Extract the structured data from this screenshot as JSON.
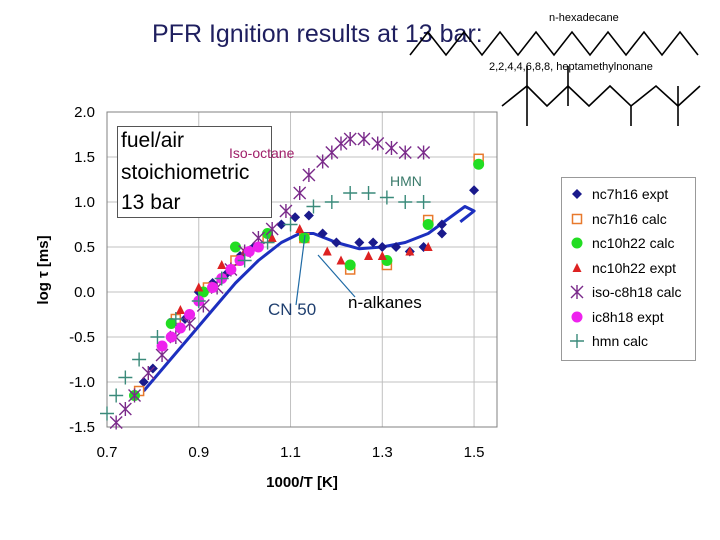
{
  "slide": {
    "title": "PFR Ignition results at 13 bar:",
    "molecule_top_label": "n-hexadecane",
    "molecule_bottom_label": "2,2,4,4,6,8,8, heptamethylnonane"
  },
  "info_box": {
    "line1": "fuel/air",
    "line2": "stoichiometric",
    "line3": "13 bar"
  },
  "annotations": {
    "iso_octane": "Iso-octane",
    "hmn": "HMN",
    "cn50": "CN 50",
    "n_alkanes": "n-alkanes"
  },
  "colors": {
    "nc7h16_expt": "#1a1a8c",
    "nc7h16_calc": "#e8792c",
    "nc10h22_calc": "#22dd22",
    "nc10h22_expt": "#dd2222",
    "iso_c8h18_calc": "#7a2a8a",
    "ic8h18_expt": "#ee22ee",
    "hmn_calc": "#3a8a7a",
    "curve": "#1c2fbf",
    "cn50_line": "#1f6aa5",
    "iso_label": "#a0206a",
    "hmn_label": "#3a7a6a",
    "title": "#1f1f5f"
  },
  "chart_data": {
    "type": "scatter",
    "xlabel": "1000/T [K]",
    "ylabel": "log τ [ms]",
    "xlim": [
      0.7,
      1.55
    ],
    "ylim": [
      -1.5,
      2.0
    ],
    "x_ticks": [
      "0.7",
      "0.9",
      "1.1",
      "1.3",
      "1.5"
    ],
    "y_ticks": [
      "2.0",
      "1.5",
      "1.0",
      "0.5",
      "0.0",
      "-0.5",
      "-1.0",
      "-1.5"
    ],
    "grid": true,
    "legend_position": "right",
    "series": [
      {
        "name": "nc7h16 expt",
        "marker": "diamond",
        "color_key": "nc7h16_expt",
        "x": [
          0.78,
          0.8,
          0.84,
          0.87,
          0.9,
          0.93,
          0.96,
          0.99,
          1.02,
          1.05,
          1.08,
          1.11,
          1.14,
          1.17,
          1.2,
          1.25,
          1.28,
          1.3,
          1.33,
          1.36,
          1.39,
          1.43,
          1.43,
          1.5
        ],
        "y": [
          -1.0,
          -0.85,
          -0.5,
          -0.3,
          0.0,
          0.1,
          0.2,
          0.4,
          0.5,
          0.65,
          0.75,
          0.83,
          0.85,
          0.65,
          0.55,
          0.55,
          0.55,
          0.5,
          0.5,
          0.45,
          0.5,
          0.65,
          0.75,
          1.13
        ]
      },
      {
        "name": "nc7h16  calc",
        "marker": "square",
        "color_key": "nc7h16_calc",
        "x": [
          0.77,
          0.85,
          0.92,
          0.98,
          1.05,
          1.13,
          1.23,
          1.31,
          1.4,
          1.51
        ],
        "y": [
          -1.1,
          -0.3,
          0.05,
          0.35,
          0.6,
          0.6,
          0.25,
          0.3,
          0.8,
          1.48
        ]
      },
      {
        "name": "nc10h22 calc",
        "marker": "circle",
        "color_key": "nc10h22_calc",
        "x": [
          0.76,
          0.84,
          0.91,
          0.98,
          1.05,
          1.13,
          1.23,
          1.31,
          1.4,
          1.51
        ],
        "y": [
          -1.15,
          -0.35,
          0.0,
          0.5,
          0.65,
          0.6,
          0.3,
          0.35,
          0.75,
          1.42
        ]
      },
      {
        "name": "nc10h22 expt",
        "marker": "triangle",
        "color_key": "nc10h22_expt",
        "x": [
          0.86,
          0.9,
          0.95,
          1.0,
          1.06,
          1.12,
          1.18,
          1.21,
          1.27,
          1.3,
          1.36,
          1.4
        ],
        "y": [
          -0.2,
          0.05,
          0.3,
          0.45,
          0.6,
          0.7,
          0.45,
          0.35,
          0.4,
          0.4,
          0.45,
          0.5
        ]
      },
      {
        "name": "iso-c8h18 calc",
        "marker": "star",
        "color_key": "iso_c8h18_calc",
        "x": [
          0.72,
          0.74,
          0.76,
          0.79,
          0.82,
          0.85,
          0.88,
          0.91,
          0.94,
          0.97,
          1.0,
          1.03,
          1.06,
          1.09,
          1.12,
          1.14,
          1.17,
          1.19,
          1.21,
          1.23,
          1.26,
          1.29,
          1.32,
          1.35,
          1.39
        ],
        "y": [
          -1.45,
          -1.3,
          -1.15,
          -0.9,
          -0.7,
          -0.5,
          -0.35,
          -0.15,
          0.05,
          0.25,
          0.45,
          0.6,
          0.7,
          0.9,
          1.1,
          1.3,
          1.45,
          1.55,
          1.65,
          1.7,
          1.7,
          1.65,
          1.6,
          1.55,
          1.55
        ]
      },
      {
        "name": "ic8h18 expt",
        "marker": "circle",
        "color_key": "ic8h18_expt",
        "x": [
          0.82,
          0.84,
          0.86,
          0.88,
          0.9,
          0.93,
          0.95,
          0.97,
          0.99,
          1.01,
          1.03
        ],
        "y": [
          -0.6,
          -0.5,
          -0.4,
          -0.25,
          -0.1,
          0.05,
          0.15,
          0.25,
          0.35,
          0.45,
          0.5
        ]
      },
      {
        "name": "hmn  calc",
        "marker": "plus",
        "color_key": "hmn_calc",
        "x": [
          0.7,
          0.72,
          0.74,
          0.77,
          0.81,
          0.85,
          0.9,
          0.95,
          1.0,
          1.05,
          1.1,
          1.15,
          1.19,
          1.23,
          1.27,
          1.31,
          1.35,
          1.39
        ],
        "y": [
          -1.35,
          -1.15,
          -0.95,
          -0.75,
          -0.5,
          -0.3,
          -0.1,
          0.15,
          0.35,
          0.55,
          0.75,
          0.95,
          1.0,
          1.1,
          1.1,
          1.05,
          1.0,
          1.0
        ]
      }
    ],
    "curve": {
      "label": "CN 50",
      "x": [
        0.78,
        0.83,
        0.88,
        0.93,
        0.98,
        1.03,
        1.08,
        1.12,
        1.15,
        1.2,
        1.25,
        1.3,
        1.35,
        1.4,
        1.44,
        1.48,
        1.5,
        1.47
      ],
      "y": [
        -1.1,
        -0.8,
        -0.5,
        -0.2,
        0.1,
        0.35,
        0.55,
        0.65,
        0.65,
        0.55,
        0.48,
        0.5,
        0.55,
        0.65,
        0.8,
        0.95,
        0.9,
        0.78
      ]
    }
  }
}
